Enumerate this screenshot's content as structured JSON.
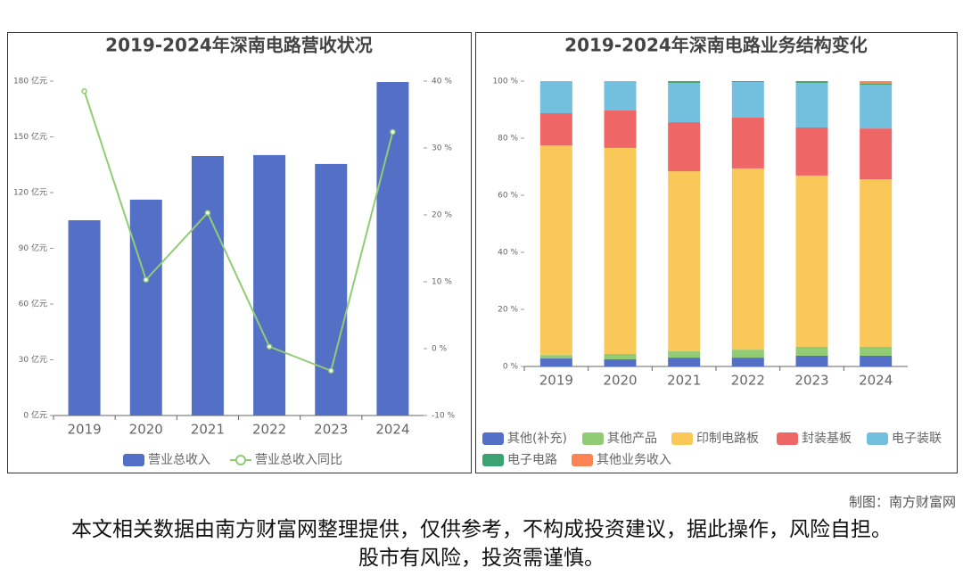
{
  "chart_data": [
    {
      "type": "bar",
      "title": "2019-2024年深南电路营收状况",
      "categories": [
        "2019",
        "2020",
        "2021",
        "2022",
        "2023",
        "2024"
      ],
      "series": [
        {
          "name": "营业总收入",
          "color": "#5470c6",
          "values": [
            105.1,
            116.2,
            139.7,
            140.2,
            135.4,
            179.5
          ]
        },
        {
          "name": "营业总收入同比",
          "type": "line",
          "axis": "y2",
          "color": "#91cc75",
          "values": [
            38.5,
            10.3,
            20.3,
            0.3,
            -3.3,
            32.4
          ]
        }
      ],
      "ylim": [
        0,
        180
      ],
      "yticks": [
        {
          "value": 0,
          "label": "0 亿元"
        },
        {
          "value": 30,
          "label": "30 亿元"
        },
        {
          "value": 60,
          "label": "60 亿元"
        },
        {
          "value": 90,
          "label": "90 亿元"
        },
        {
          "value": 120,
          "label": "120 亿元"
        },
        {
          "value": 150,
          "label": "150 亿元"
        },
        {
          "value": 180,
          "label": "180 亿元"
        }
      ],
      "y2lim": [
        -10,
        40
      ],
      "y2ticks": [
        {
          "value": -10,
          "label": "-10 %"
        },
        {
          "value": 0,
          "label": "0 %"
        },
        {
          "value": 10,
          "label": "10 %"
        },
        {
          "value": 20,
          "label": "20 %"
        },
        {
          "value": 30,
          "label": "30 %"
        },
        {
          "value": 40,
          "label": "40 %"
        }
      ],
      "legend": "bottom"
    },
    {
      "type": "stacked_bar",
      "title": "2019-2024年深南电路业务结构变化",
      "categories": [
        "2019",
        "2020",
        "2021",
        "2022",
        "2023",
        "2024"
      ],
      "series": [
        {
          "name": "其他(补充)",
          "color": "#5470c6",
          "values": [
            2.8,
            2.5,
            3.1,
            3.1,
            3.75,
            3.75
          ]
        },
        {
          "name": "其他产品",
          "color": "#91cc75",
          "values": [
            1.2,
            1.9,
            2.2,
            2.8,
            3.15,
            3.15
          ]
        },
        {
          "name": "印制电路板",
          "color": "#fac858",
          "values": [
            73.5,
            72.2,
            63.1,
            63.5,
            60,
            58.7
          ]
        },
        {
          "name": "封装基板",
          "color": "#ee6666",
          "values": [
            11.25,
            13.1,
            17.2,
            17.8,
            16.85,
            17.8
          ]
        },
        {
          "name": "电子装联",
          "color": "#73c0de",
          "values": [
            11.25,
            10.3,
            13.8,
            12.5,
            15.65,
            15.35
          ]
        },
        {
          "name": "电子电路",
          "color": "#3ba272",
          "values": [
            0,
            0,
            0.6,
            0.3,
            0.6,
            0.3
          ]
        },
        {
          "name": "其他业务收入",
          "color": "#fc8452",
          "values": [
            0,
            0,
            0,
            0,
            0,
            0.95
          ]
        }
      ],
      "ylim": [
        0,
        100
      ],
      "yticks": [
        {
          "value": 0,
          "label": "0 %"
        },
        {
          "value": 20,
          "label": "20 %"
        },
        {
          "value": 40,
          "label": "40 %"
        },
        {
          "value": 60,
          "label": "60 %"
        },
        {
          "value": 80,
          "label": "80 %"
        },
        {
          "value": 100,
          "label": "100 %"
        }
      ],
      "legend": "bottom"
    }
  ],
  "footer": {
    "credit": "制图：南方财富网",
    "disclaimer": "本文相关数据由南方财富网整理提供，仅供参考，不构成投资建议，据此操作，风险自担。股市有风险，投资需谨慎。"
  }
}
